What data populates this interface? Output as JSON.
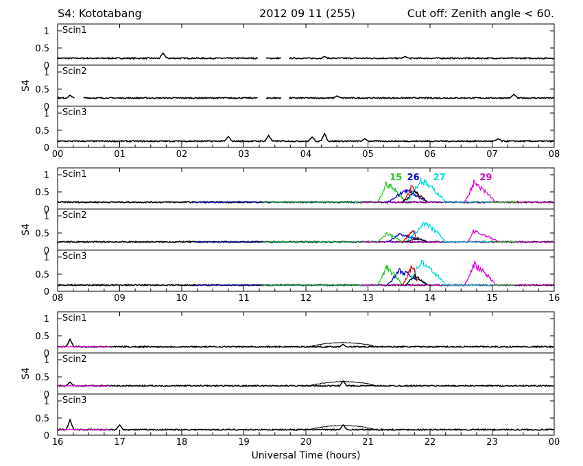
{
  "header": {
    "station": "S4: Kototabang",
    "date": "2012 09 11 (255)",
    "cutoff": "Cut off: Zenith angle < 60."
  },
  "xlabel": "Universal Time (hours)",
  "ylabel": "S4",
  "chart_data": {
    "type": "line",
    "title": "S4: Kototabang",
    "xlabel": "Universal Time (hours)",
    "ylabel": "S4",
    "ylim": [
      0,
      1.2
    ],
    "yticks": [
      "0",
      "0.5",
      "1"
    ],
    "grid": false,
    "colors": {
      "15": "#22cc22",
      "26": "#0000cc",
      "red": "#dd0000",
      "27": "#00dddd",
      "29": "#dd00dd",
      "base": "#000000"
    },
    "series_labels": [
      {
        "text": "15",
        "color": "#22cc22",
        "x": 13.45
      },
      {
        "text": "26",
        "color": "#0000cc",
        "x": 13.73
      },
      {
        "text": "27",
        "color": "#00dddd",
        "x": 14.15
      },
      {
        "text": "29",
        "color": "#dd00dd",
        "x": 14.9
      }
    ],
    "groups": [
      {
        "xlim": [
          0,
          8
        ],
        "xticks": [
          "00",
          "01",
          "02",
          "03",
          "04",
          "05",
          "06",
          "07",
          "08"
        ],
        "panels": [
          {
            "name": "Scin1",
            "baseline": 0.2,
            "gaps": [
              [
                3.22,
                3.35
              ],
              [
                3.6,
                3.72
              ]
            ],
            "spikes": [
              [
                1.7,
                0.35
              ],
              [
                4.3,
                0.25
              ],
              [
                5.6,
                0.25
              ]
            ]
          },
          {
            "name": "Scin2",
            "baseline": 0.24,
            "gaps": [
              [
                0.28,
                0.42
              ],
              [
                3.22,
                3.35
              ],
              [
                3.6,
                3.72
              ]
            ],
            "spikes": [
              [
                0.2,
                0.32
              ],
              [
                4.5,
                0.3
              ],
              [
                7.35,
                0.35
              ]
            ]
          },
          {
            "name": "Scin3",
            "baseline": 0.18,
            "gaps": [],
            "spikes": [
              [
                2.75,
                0.32
              ],
              [
                3.4,
                0.35
              ],
              [
                4.1,
                0.3
              ],
              [
                4.3,
                0.4
              ],
              [
                4.95,
                0.25
              ],
              [
                7.1,
                0.25
              ]
            ]
          }
        ]
      },
      {
        "xlim": [
          8,
          16
        ],
        "xticks": [
          "08",
          "09",
          "10",
          "11",
          "12",
          "13",
          "14",
          "15",
          "16"
        ],
        "panels": [
          {
            "name": "Scin1",
            "baseline": 0.2,
            "events": [
              {
                "color": "#22cc22",
                "x0": 13.15,
                "x1": 13.6,
                "peak": 0.75,
                "px": 13.3
              },
              {
                "color": "#0000cc",
                "x0": 13.3,
                "x1": 13.95,
                "peak": 0.55,
                "px": 13.6
              },
              {
                "color": "#dd0000",
                "x0": 13.55,
                "x1": 13.85,
                "peak": 0.7,
                "px": 13.72
              },
              {
                "color": "#00dddd",
                "x0": 13.6,
                "x1": 14.25,
                "peak": 0.85,
                "px": 13.85
              },
              {
                "color": "#dd00dd",
                "x0": 14.55,
                "x1": 15.05,
                "peak": 0.75,
                "px": 14.7
              },
              {
                "color": "#000000",
                "x0": 13.55,
                "x1": 13.95,
                "peak": 0.5,
                "px": 13.75
              }
            ]
          },
          {
            "name": "Scin2",
            "baseline": 0.24,
            "events": [
              {
                "color": "#22cc22",
                "x0": 13.15,
                "x1": 13.55,
                "peak": 0.5,
                "px": 13.3
              },
              {
                "color": "#0000cc",
                "x0": 13.3,
                "x1": 13.95,
                "peak": 0.45,
                "px": 13.5
              },
              {
                "color": "#dd0000",
                "x0": 13.55,
                "x1": 13.8,
                "peak": 0.6,
                "px": 13.72
              },
              {
                "color": "#00dddd",
                "x0": 13.6,
                "x1": 14.25,
                "peak": 0.8,
                "px": 13.9
              },
              {
                "color": "#dd00dd",
                "x0": 14.6,
                "x1": 15.1,
                "peak": 0.55,
                "px": 14.7
              },
              {
                "color": "#000000",
                "x0": 13.6,
                "x1": 13.95,
                "peak": 0.35,
                "px": 13.8
              }
            ]
          },
          {
            "name": "Scin3",
            "baseline": 0.18,
            "events": [
              {
                "color": "#22cc22",
                "x0": 13.15,
                "x1": 13.55,
                "peak": 0.7,
                "px": 13.3
              },
              {
                "color": "#0000cc",
                "x0": 13.3,
                "x1": 13.95,
                "peak": 0.6,
                "px": 13.5
              },
              {
                "color": "#dd0000",
                "x0": 13.55,
                "x1": 13.8,
                "peak": 0.75,
                "px": 13.72
              },
              {
                "color": "#00dddd",
                "x0": 13.6,
                "x1": 14.25,
                "peak": 0.85,
                "px": 13.85
              },
              {
                "color": "#dd00dd",
                "x0": 14.55,
                "x1": 15.05,
                "peak": 0.8,
                "px": 14.7
              },
              {
                "color": "#000000",
                "x0": 13.6,
                "x1": 13.95,
                "peak": 0.45,
                "px": 13.75
              }
            ]
          }
        ]
      },
      {
        "xlim": [
          16,
          24
        ],
        "xticks": [
          "16",
          "17",
          "18",
          "19",
          "20",
          "21",
          "22",
          "23",
          "00"
        ],
        "panels": [
          {
            "name": "Scin1",
            "baseline": 0.18,
            "magenta_until": 16.85,
            "spikes": [
              [
                16.2,
                0.4
              ],
              [
                20.6,
                0.25
              ]
            ]
          },
          {
            "name": "Scin2",
            "baseline": 0.24,
            "magenta_until": 16.85,
            "spikes": [
              [
                16.2,
                0.35
              ],
              [
                20.6,
                0.38
              ]
            ]
          },
          {
            "name": "Scin3",
            "baseline": 0.16,
            "magenta_until": 16.85,
            "spikes": [
              [
                16.2,
                0.45
              ],
              [
                17.0,
                0.3
              ],
              [
                20.6,
                0.3
              ]
            ]
          }
        ]
      }
    ]
  }
}
